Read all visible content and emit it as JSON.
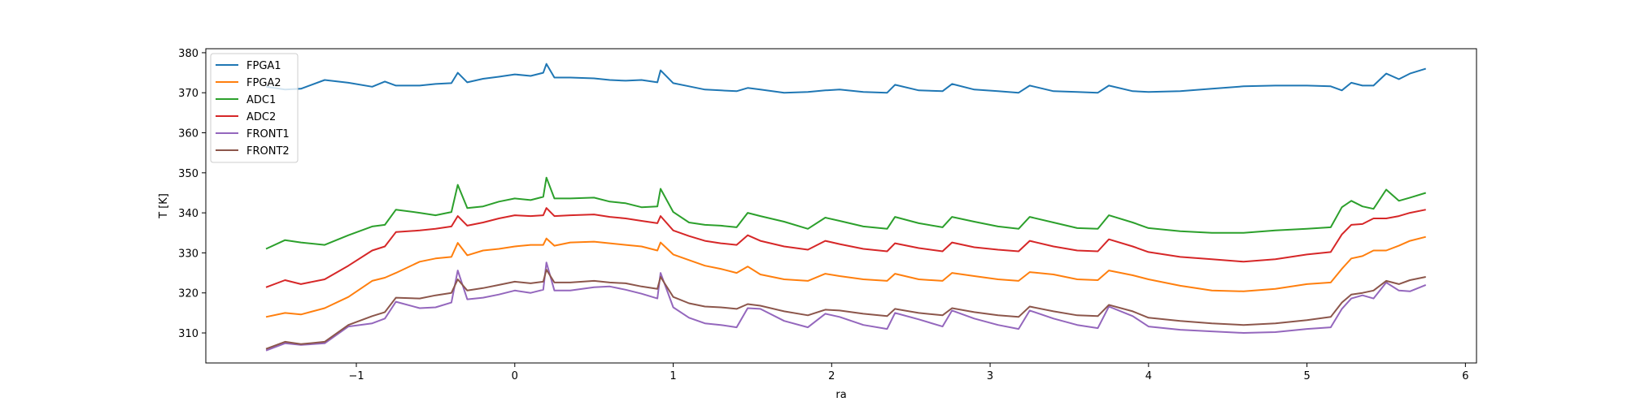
{
  "chart_data": {
    "type": "line",
    "title": "",
    "xlabel": "ra",
    "ylabel": "T [K]",
    "xlim": [
      -1.95,
      6.07
    ],
    "ylim": [
      302.5,
      381.0
    ],
    "xticks": [
      -1,
      0,
      1,
      2,
      3,
      4,
      5,
      6
    ],
    "yticks": [
      310,
      320,
      330,
      340,
      350,
      360,
      370,
      380
    ],
    "grid": false,
    "legend_position": "top-left",
    "x": [
      -1.57,
      -1.45,
      -1.35,
      -1.2,
      -1.05,
      -0.9,
      -0.82,
      -0.75,
      -0.6,
      -0.5,
      -0.4,
      -0.36,
      -0.3,
      -0.2,
      -0.1,
      0.0,
      0.1,
      0.18,
      0.2,
      0.25,
      0.35,
      0.5,
      0.6,
      0.7,
      0.8,
      0.9,
      0.92,
      1.0,
      1.1,
      1.2,
      1.3,
      1.4,
      1.47,
      1.55,
      1.7,
      1.85,
      1.96,
      2.05,
      2.2,
      2.35,
      2.4,
      2.55,
      2.7,
      2.76,
      2.9,
      3.05,
      3.18,
      3.25,
      3.4,
      3.55,
      3.68,
      3.75,
      3.9,
      4.0,
      4.2,
      4.4,
      4.6,
      4.8,
      5.0,
      5.15,
      5.22,
      5.28,
      5.35,
      5.42,
      5.5,
      5.58,
      5.65,
      5.75
    ],
    "series": [
      {
        "name": "FPGA1",
        "color": "#1f77b4",
        "values": [
          371.5,
          370.8,
          371.0,
          373.2,
          372.5,
          371.5,
          372.8,
          371.8,
          371.8,
          372.2,
          372.4,
          375.0,
          372.6,
          373.5,
          374.0,
          374.6,
          374.2,
          375.0,
          377.2,
          373.8,
          373.8,
          373.6,
          373.2,
          373.0,
          373.2,
          372.6,
          375.6,
          372.4,
          371.6,
          370.8,
          370.6,
          370.4,
          371.2,
          370.8,
          370.0,
          370.2,
          370.6,
          370.8,
          370.2,
          370.0,
          372.0,
          370.6,
          370.4,
          372.2,
          370.8,
          370.4,
          370.0,
          371.8,
          370.4,
          370.2,
          370.0,
          371.8,
          370.4,
          370.2,
          370.4,
          371.0,
          371.6,
          371.8,
          371.8,
          371.6,
          370.6,
          372.5,
          371.8,
          371.8,
          374.8,
          373.4,
          374.8,
          376.0
        ]
      },
      {
        "name": "FPGA2",
        "color": "#ff7f0e",
        "values": [
          314.0,
          315.0,
          314.6,
          316.2,
          319.0,
          323.0,
          323.8,
          325.0,
          327.8,
          328.6,
          329.0,
          332.5,
          329.4,
          330.6,
          331.0,
          331.6,
          332.0,
          332.0,
          333.6,
          331.8,
          332.6,
          332.8,
          332.4,
          332.0,
          331.6,
          330.6,
          332.6,
          329.6,
          328.2,
          326.8,
          326.0,
          325.0,
          326.6,
          324.6,
          323.4,
          323.0,
          324.8,
          324.2,
          323.4,
          323.0,
          324.8,
          323.4,
          323.0,
          325.0,
          324.2,
          323.4,
          323.0,
          325.2,
          324.6,
          323.4,
          323.2,
          325.6,
          324.4,
          323.4,
          321.8,
          320.6,
          320.4,
          321.0,
          322.2,
          322.6,
          326.0,
          328.6,
          329.2,
          330.6,
          330.6,
          331.8,
          333.0,
          334.0
        ]
      },
      {
        "name": "ADC1",
        "color": "#2ca02c",
        "values": [
          331.0,
          333.2,
          332.6,
          332.0,
          334.4,
          336.6,
          337.0,
          340.8,
          340.0,
          339.4,
          340.2,
          347.0,
          341.2,
          341.6,
          342.8,
          343.6,
          343.2,
          344.0,
          348.8,
          343.6,
          343.6,
          343.8,
          342.8,
          342.4,
          341.4,
          341.6,
          346.0,
          340.2,
          337.6,
          337.0,
          336.8,
          336.4,
          340.0,
          339.2,
          337.8,
          336.0,
          338.8,
          338.0,
          336.6,
          336.0,
          339.0,
          337.4,
          336.4,
          339.0,
          337.8,
          336.6,
          336.0,
          339.0,
          337.6,
          336.2,
          336.0,
          339.4,
          337.6,
          336.2,
          335.4,
          335.0,
          335.0,
          335.6,
          336.0,
          336.4,
          341.4,
          343.0,
          341.6,
          341.0,
          345.8,
          343.0,
          343.8,
          345.0
        ]
      },
      {
        "name": "ADC2",
        "color": "#d62728",
        "values": [
          321.4,
          323.2,
          322.2,
          323.4,
          326.8,
          330.6,
          331.6,
          335.2,
          335.6,
          336.0,
          336.6,
          339.2,
          336.8,
          337.6,
          338.6,
          339.4,
          339.2,
          339.4,
          341.2,
          339.2,
          339.4,
          339.6,
          339.0,
          338.6,
          338.0,
          337.4,
          339.2,
          335.6,
          334.2,
          333.0,
          332.4,
          332.0,
          334.4,
          333.0,
          331.6,
          330.8,
          333.0,
          332.2,
          331.0,
          330.4,
          332.4,
          331.2,
          330.4,
          332.6,
          331.4,
          330.8,
          330.4,
          333.0,
          331.6,
          330.6,
          330.4,
          333.4,
          331.6,
          330.2,
          329.0,
          328.4,
          327.8,
          328.4,
          329.6,
          330.2,
          334.6,
          337.0,
          337.2,
          338.6,
          338.6,
          339.2,
          340.0,
          340.8
        ]
      },
      {
        "name": "FRONT1",
        "color": "#9467bd",
        "values": [
          305.6,
          307.4,
          307.0,
          307.4,
          311.6,
          312.4,
          313.6,
          317.8,
          316.2,
          316.4,
          317.6,
          325.6,
          318.4,
          318.8,
          319.6,
          320.6,
          320.0,
          320.8,
          327.6,
          320.6,
          320.6,
          321.4,
          321.6,
          320.8,
          319.8,
          318.6,
          325.0,
          316.4,
          313.8,
          312.4,
          312.0,
          311.4,
          316.2,
          316.0,
          313.0,
          311.4,
          314.8,
          314.0,
          312.0,
          311.0,
          315.0,
          313.4,
          311.6,
          315.6,
          313.6,
          312.0,
          311.0,
          315.6,
          313.6,
          312.0,
          311.2,
          316.6,
          314.2,
          311.6,
          310.8,
          310.4,
          310.0,
          310.2,
          311.0,
          311.4,
          316.0,
          318.6,
          319.4,
          318.6,
          322.6,
          320.6,
          320.4,
          322.0
        ]
      },
      {
        "name": "FRONT2",
        "color": "#8c564b",
        "values": [
          306.0,
          307.8,
          307.2,
          307.8,
          312.0,
          314.2,
          315.2,
          318.8,
          318.6,
          319.4,
          320.0,
          323.4,
          320.6,
          321.2,
          322.0,
          322.8,
          322.4,
          322.8,
          325.8,
          322.6,
          322.6,
          323.0,
          322.6,
          322.4,
          321.6,
          321.0,
          324.0,
          319.0,
          317.4,
          316.6,
          316.4,
          316.0,
          317.2,
          316.8,
          315.4,
          314.4,
          315.8,
          315.6,
          314.8,
          314.2,
          316.0,
          315.0,
          314.4,
          316.2,
          315.2,
          314.4,
          314.0,
          316.6,
          315.4,
          314.4,
          314.2,
          317.0,
          315.4,
          313.8,
          313.0,
          312.4,
          312.0,
          312.4,
          313.2,
          314.0,
          317.6,
          319.6,
          320.0,
          320.6,
          323.0,
          322.2,
          323.2,
          324.0
        ]
      }
    ]
  }
}
